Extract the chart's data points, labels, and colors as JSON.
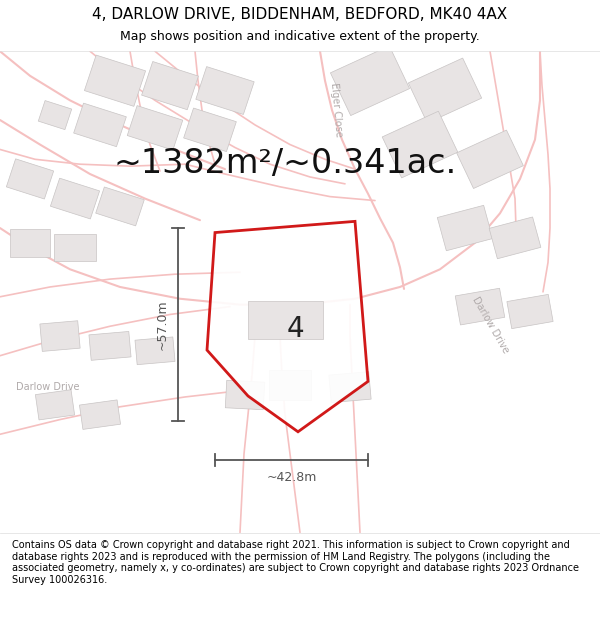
{
  "title": "4, DARLOW DRIVE, BIDDENHAM, BEDFORD, MK40 4AX",
  "subtitle": "Map shows position and indicative extent of the property.",
  "area_text": "~1382m²/~0.341ac.",
  "label_4": "4",
  "dim_width": "~42.8m",
  "dim_height": "~57.0m",
  "footer": "Contains OS data © Crown copyright and database right 2021. This information is subject to Crown copyright and database rights 2023 and is reproduced with the permission of HM Land Registry. The polygons (including the associated geometry, namely x, y co-ordinates) are subject to Crown copyright and database rights 2023 Ordnance Survey 100026316.",
  "map_bg": "#faf7f7",
  "road_color": "#f5c0c0",
  "building_fill": "#e8e4e4",
  "building_outline": "#c8c4c4",
  "property_color": "#cc0000",
  "property_lw": 2.0,
  "dim_color": "#555555",
  "road_label_color": "#b0aaaa",
  "figsize": [
    6.0,
    6.25
  ],
  "dpi": 100,
  "title_fontsize": 11,
  "subtitle_fontsize": 9,
  "area_fontsize": 24,
  "label4_fontsize": 20,
  "dim_fontsize": 9,
  "footer_fontsize": 7,
  "road_label_fontsize": 7
}
